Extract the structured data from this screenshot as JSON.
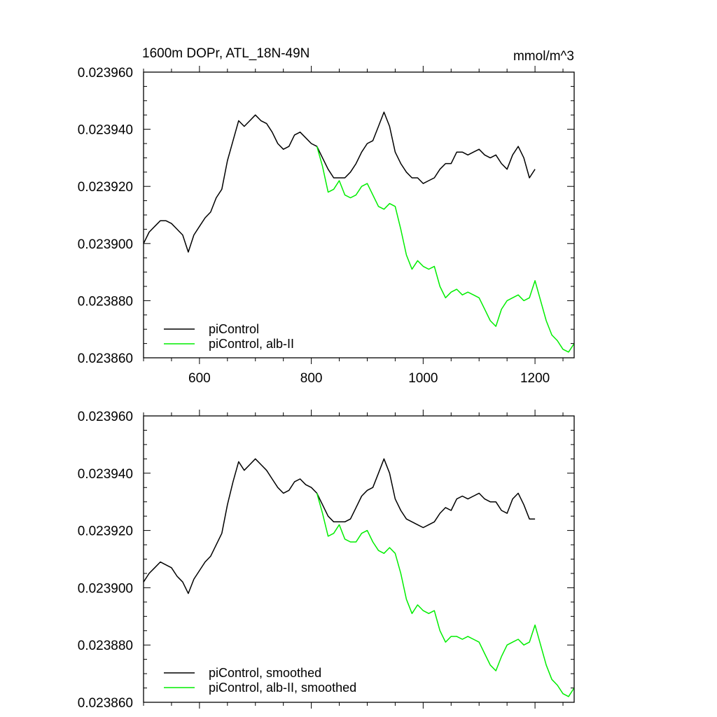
{
  "chart_data": [
    {
      "type": "line",
      "title": "1600m DOPr, ATL_18N-49N",
      "units": "mmol/m^3",
      "xlabel": "",
      "ylabel": "",
      "xlim": [
        500,
        1270
      ],
      "ylim": [
        0.02386,
        0.02396
      ],
      "xticks": [
        600,
        800,
        1000,
        1200
      ],
      "xtick_labels": [
        "600",
        "800",
        "1000",
        "1200"
      ],
      "yticks": [
        0.02386,
        0.02388,
        0.0239,
        0.02392,
        0.02394,
        0.02396
      ],
      "ytick_labels": [
        "0.023860",
        "0.023880",
        "0.023900",
        "0.023920",
        "0.023940",
        "0.023960"
      ],
      "legend_position": "bottom-left",
      "series": [
        {
          "name": "piControl",
          "color": "#000000",
          "x": [
            500,
            510,
            520,
            530,
            540,
            550,
            560,
            570,
            580,
            590,
            600,
            610,
            620,
            630,
            640,
            650,
            660,
            670,
            680,
            690,
            700,
            710,
            720,
            730,
            740,
            750,
            760,
            770,
            780,
            790,
            800,
            810,
            820,
            830,
            840,
            850,
            860,
            870,
            880,
            890,
            900,
            910,
            920,
            930,
            940,
            950,
            960,
            970,
            980,
            990,
            1000,
            1010,
            1020,
            1030,
            1040,
            1050,
            1060,
            1070,
            1080,
            1090,
            1100,
            1110,
            1120,
            1130,
            1140,
            1150,
            1160,
            1170,
            1180,
            1190,
            1200
          ],
          "values": [
            0.0239,
            0.023904,
            0.023906,
            0.023908,
            0.023908,
            0.023907,
            0.023905,
            0.023903,
            0.023897,
            0.023903,
            0.023906,
            0.023909,
            0.023911,
            0.023916,
            0.023919,
            0.023929,
            0.023936,
            0.023943,
            0.023941,
            0.023943,
            0.023945,
            0.023943,
            0.023942,
            0.023939,
            0.023935,
            0.023933,
            0.023934,
            0.023938,
            0.023939,
            0.023937,
            0.023935,
            0.023934,
            0.02393,
            0.023926,
            0.023923,
            0.023923,
            0.023923,
            0.023925,
            0.023928,
            0.023932,
            0.023935,
            0.023936,
            0.023941,
            0.023946,
            0.023941,
            0.023932,
            0.023928,
            0.023925,
            0.023923,
            0.023923,
            0.023921,
            0.023922,
            0.023923,
            0.023926,
            0.023928,
            0.023928,
            0.023932,
            0.023932,
            0.023931,
            0.023932,
            0.023933,
            0.023931,
            0.02393,
            0.023931,
            0.023928,
            0.023926,
            0.023931,
            0.023934,
            0.02393,
            0.023923,
            0.023926
          ]
        },
        {
          "name": "piControl, alb-II",
          "color": "#00ee00",
          "x": [
            810,
            820,
            830,
            840,
            850,
            860,
            870,
            880,
            890,
            900,
            910,
            920,
            930,
            940,
            950,
            960,
            970,
            980,
            990,
            1000,
            1010,
            1020,
            1030,
            1040,
            1050,
            1060,
            1070,
            1080,
            1090,
            1100,
            1110,
            1120,
            1130,
            1140,
            1150,
            1160,
            1170,
            1180,
            1190,
            1200,
            1210,
            1220,
            1230,
            1240,
            1250,
            1260,
            1270
          ],
          "values": [
            0.023934,
            0.023927,
            0.023918,
            0.023919,
            0.023922,
            0.023917,
            0.023916,
            0.023917,
            0.02392,
            0.023921,
            0.023917,
            0.023913,
            0.023912,
            0.023914,
            0.023913,
            0.023905,
            0.023896,
            0.023891,
            0.023894,
            0.023892,
            0.023891,
            0.023892,
            0.023885,
            0.023881,
            0.023883,
            0.023884,
            0.023882,
            0.023883,
            0.023882,
            0.023881,
            0.023877,
            0.023873,
            0.023871,
            0.023877,
            0.02388,
            0.023881,
            0.023882,
            0.02388,
            0.023881,
            0.023887,
            0.02388,
            0.023873,
            0.023868,
            0.023866,
            0.023863,
            0.023862,
            0.023865
          ]
        }
      ]
    },
    {
      "type": "line",
      "title": "",
      "xlabel": "",
      "ylabel": "",
      "xlim": [
        500,
        1270
      ],
      "ylim": [
        0.02386,
        0.02396
      ],
      "xticks": [
        600,
        800,
        1000,
        1200
      ],
      "yticks": [
        0.02386,
        0.02388,
        0.0239,
        0.02392,
        0.02394,
        0.02396
      ],
      "ytick_labels": [
        "0.023860",
        "0.023880",
        "0.023900",
        "0.023920",
        "0.023940",
        "0.023960"
      ],
      "legend_position": "bottom-left",
      "series": [
        {
          "name": "piControl, smoothed",
          "color": "#000000",
          "x": [
            500,
            510,
            520,
            530,
            540,
            550,
            560,
            570,
            580,
            590,
            600,
            610,
            620,
            630,
            640,
            650,
            660,
            670,
            680,
            690,
            700,
            710,
            720,
            730,
            740,
            750,
            760,
            770,
            780,
            790,
            800,
            810,
            820,
            830,
            840,
            850,
            860,
            870,
            880,
            890,
            900,
            910,
            920,
            930,
            940,
            950,
            960,
            970,
            980,
            990,
            1000,
            1010,
            1020,
            1030,
            1040,
            1050,
            1060,
            1070,
            1080,
            1090,
            1100,
            1110,
            1120,
            1130,
            1140,
            1150,
            1160,
            1170,
            1180,
            1190,
            1200
          ],
          "values": [
            0.023902,
            0.023905,
            0.023907,
            0.023909,
            0.023908,
            0.023907,
            0.023904,
            0.023902,
            0.023898,
            0.023903,
            0.023906,
            0.023909,
            0.023911,
            0.023915,
            0.023919,
            0.023929,
            0.023937,
            0.023944,
            0.023941,
            0.023943,
            0.023945,
            0.023943,
            0.023941,
            0.023938,
            0.023935,
            0.023933,
            0.023934,
            0.023937,
            0.023938,
            0.023936,
            0.023935,
            0.023933,
            0.023929,
            0.023925,
            0.023923,
            0.023923,
            0.023923,
            0.023924,
            0.023928,
            0.023932,
            0.023934,
            0.023935,
            0.02394,
            0.023945,
            0.02394,
            0.023931,
            0.023927,
            0.023924,
            0.023923,
            0.023922,
            0.023921,
            0.023922,
            0.023923,
            0.023926,
            0.023928,
            0.023927,
            0.023931,
            0.023932,
            0.023931,
            0.023932,
            0.023933,
            0.023931,
            0.02393,
            0.02393,
            0.023927,
            0.023926,
            0.023931,
            0.023933,
            0.023929,
            0.023924,
            0.023924
          ]
        },
        {
          "name": "piControl, alb-II, smoothed",
          "color": "#00ee00",
          "x": [
            810,
            820,
            830,
            840,
            850,
            860,
            870,
            880,
            890,
            900,
            910,
            920,
            930,
            940,
            950,
            960,
            970,
            980,
            990,
            1000,
            1010,
            1020,
            1030,
            1040,
            1050,
            1060,
            1070,
            1080,
            1090,
            1100,
            1110,
            1120,
            1130,
            1140,
            1150,
            1160,
            1170,
            1180,
            1190,
            1200,
            1210,
            1220,
            1230,
            1240,
            1250,
            1260,
            1270
          ],
          "values": [
            0.023933,
            0.023926,
            0.023918,
            0.023919,
            0.023922,
            0.023917,
            0.023916,
            0.023916,
            0.023919,
            0.02392,
            0.023916,
            0.023913,
            0.023912,
            0.023914,
            0.023912,
            0.023905,
            0.023896,
            0.023891,
            0.023894,
            0.023892,
            0.023891,
            0.023892,
            0.023885,
            0.023881,
            0.023883,
            0.023883,
            0.023882,
            0.023883,
            0.023882,
            0.023881,
            0.023877,
            0.023873,
            0.023871,
            0.023876,
            0.02388,
            0.023881,
            0.023882,
            0.02388,
            0.023881,
            0.023887,
            0.02388,
            0.023873,
            0.023868,
            0.023866,
            0.023863,
            0.023862,
            0.023865
          ]
        }
      ]
    }
  ]
}
